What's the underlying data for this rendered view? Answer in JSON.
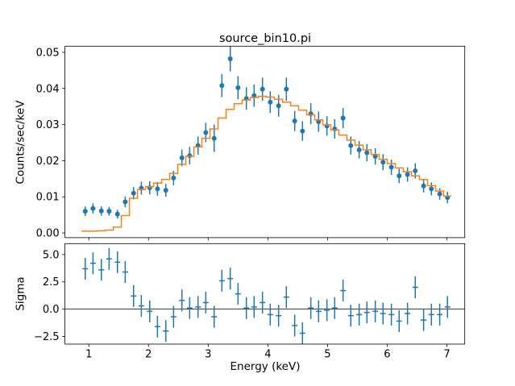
{
  "figure": {
    "title": "source_bin10.pi",
    "xlabel": "Energy (keV)",
    "top_ylabel": "Counts/sec/keV",
    "bottom_ylabel": "Sigma",
    "background": "#ffffff",
    "colors": {
      "data": "#1f77b4",
      "model": "#ff7f0e",
      "axis": "#000000"
    }
  },
  "chart_data": [
    {
      "type": "line",
      "panel": "top",
      "title": "source_bin10.pi",
      "xlabel": "",
      "ylabel": "Counts/sec/keV",
      "grid": false,
      "legend": "none",
      "xlim": [
        0.6,
        7.3
      ],
      "ylim": [
        -0.0013,
        0.0517
      ],
      "xticks": {
        "values": [
          1,
          2,
          3,
          4,
          5,
          6,
          7
        ],
        "labels": [
          "1",
          "2",
          "3",
          "4",
          "5",
          "6",
          "7"
        ],
        "show_labels": false
      },
      "yticks": {
        "values": [
          0.0,
          0.01,
          0.02,
          0.03,
          0.04,
          0.05
        ],
        "labels": [
          "0.00",
          "0.01",
          "0.02",
          "0.03",
          "0.04",
          "0.05"
        ]
      },
      "series": [
        {
          "name": "data",
          "style": "errorbar-points",
          "color": "#1f77b4",
          "x": [
            0.94,
            1.07,
            1.21,
            1.34,
            1.48,
            1.61,
            1.75,
            1.88,
            2.02,
            2.15,
            2.29,
            2.42,
            2.56,
            2.69,
            2.83,
            2.96,
            3.1,
            3.23,
            3.37,
            3.5,
            3.64,
            3.77,
            3.91,
            4.04,
            4.18,
            4.31,
            4.45,
            4.58,
            4.72,
            4.85,
            4.99,
            5.12,
            5.26,
            5.39,
            5.53,
            5.66,
            5.8,
            5.93,
            6.07,
            6.2,
            6.34,
            6.47,
            6.61,
            6.74,
            6.88,
            7.01
          ],
          "y": [
            0.006,
            0.0068,
            0.0061,
            0.006,
            0.0052,
            0.0086,
            0.011,
            0.0124,
            0.0125,
            0.0122,
            0.0118,
            0.0152,
            0.0208,
            0.0214,
            0.0242,
            0.0278,
            0.0262,
            0.0408,
            0.0482,
            0.0402,
            0.0372,
            0.038,
            0.0398,
            0.0362,
            0.0352,
            0.0398,
            0.031,
            0.0282,
            0.033,
            0.0308,
            0.0296,
            0.0288,
            0.0318,
            0.0242,
            0.023,
            0.0222,
            0.0212,
            0.0196,
            0.0182,
            0.0158,
            0.0162,
            0.0172,
            0.013,
            0.0122,
            0.0108,
            0.0098
          ],
          "yerr": [
            0.0013,
            0.0014,
            0.0013,
            0.0012,
            0.0012,
            0.0015,
            0.0017,
            0.0018,
            0.0018,
            0.0019,
            0.0018,
            0.002,
            0.0023,
            0.0024,
            0.0025,
            0.0027,
            0.0038,
            0.0032,
            0.0035,
            0.0032,
            0.0031,
            0.0031,
            0.0032,
            0.003,
            0.003,
            0.0032,
            0.0028,
            0.0027,
            0.0029,
            0.0028,
            0.0027,
            0.0027,
            0.0028,
            0.0025,
            0.0024,
            0.0024,
            0.0023,
            0.0022,
            0.0021,
            0.002,
            0.002,
            0.0021,
            0.0018,
            0.0018,
            0.0016,
            0.0016
          ]
        },
        {
          "name": "model",
          "style": "step-mid",
          "color": "#ff7f0e",
          "x": [
            0.94,
            1.07,
            1.21,
            1.34,
            1.48,
            1.61,
            1.75,
            1.88,
            2.02,
            2.15,
            2.29,
            2.42,
            2.56,
            2.69,
            2.83,
            2.96,
            3.1,
            3.23,
            3.37,
            3.5,
            3.64,
            3.77,
            3.91,
            4.04,
            4.18,
            4.31,
            4.45,
            4.58,
            4.72,
            4.85,
            4.99,
            5.12,
            5.26,
            5.39,
            5.53,
            5.66,
            5.8,
            5.93,
            6.07,
            6.2,
            6.34,
            6.47,
            6.61,
            6.74,
            6.88,
            7.01
          ],
          "y": [
            0.0005,
            0.0005,
            0.0006,
            0.0008,
            0.0016,
            0.0048,
            0.0096,
            0.012,
            0.0128,
            0.0138,
            0.0148,
            0.0165,
            0.019,
            0.0212,
            0.0238,
            0.0262,
            0.0288,
            0.0318,
            0.0342,
            0.0358,
            0.0368,
            0.0375,
            0.0378,
            0.0376,
            0.037,
            0.0362,
            0.0352,
            0.034,
            0.0327,
            0.0313,
            0.0299,
            0.0285,
            0.0271,
            0.0257,
            0.0243,
            0.023,
            0.0217,
            0.0204,
            0.0192,
            0.018,
            0.0169,
            0.0158,
            0.0148,
            0.0131,
            0.0116,
            0.0102
          ]
        }
      ]
    },
    {
      "type": "scatter",
      "panel": "bottom",
      "title": "",
      "xlabel": "Energy (keV)",
      "ylabel": "Sigma",
      "grid": false,
      "legend": "none",
      "hline": 0,
      "xlim": [
        0.6,
        7.3
      ],
      "ylim": [
        -3.2,
        6.0
      ],
      "xticks": {
        "values": [
          1,
          2,
          3,
          4,
          5,
          6,
          7
        ],
        "labels": [
          "1",
          "2",
          "3",
          "4",
          "5",
          "6",
          "7"
        ],
        "show_labels": true
      },
      "yticks": {
        "values": [
          -2.5,
          0.0,
          2.5,
          5.0
        ],
        "labels": [
          "−2.5",
          "0.0",
          "2.5",
          "5.0"
        ]
      },
      "series": [
        {
          "name": "delchi",
          "style": "errorbar-dashes",
          "color": "#1f77b4",
          "x": [
            0.94,
            1.07,
            1.21,
            1.34,
            1.48,
            1.61,
            1.75,
            1.88,
            2.02,
            2.15,
            2.29,
            2.42,
            2.56,
            2.69,
            2.83,
            2.96,
            3.1,
            3.23,
            3.37,
            3.5,
            3.64,
            3.77,
            3.91,
            4.04,
            4.18,
            4.31,
            4.45,
            4.58,
            4.72,
            4.85,
            4.99,
            5.12,
            5.26,
            5.39,
            5.53,
            5.66,
            5.8,
            5.93,
            6.07,
            6.2,
            6.34,
            6.47,
            6.61,
            6.74,
            6.88,
            7.01
          ],
          "y": [
            3.7,
            4.2,
            3.6,
            4.6,
            4.3,
            3.4,
            1.2,
            0.3,
            -0.2,
            -1.6,
            -2.0,
            -0.7,
            0.8,
            0.1,
            0.2,
            0.6,
            -0.7,
            2.6,
            2.8,
            1.4,
            0.1,
            0.2,
            0.6,
            -0.5,
            -0.6,
            1.1,
            -1.5,
            -2.2,
            0.1,
            -0.2,
            -0.1,
            0.1,
            1.7,
            -0.6,
            -0.5,
            -0.3,
            -0.2,
            -0.4,
            -0.5,
            -1.1,
            -0.4,
            2.0,
            -1.0,
            -0.5,
            -0.5,
            0.2
          ],
          "yerr": 1.0
        }
      ]
    }
  ]
}
